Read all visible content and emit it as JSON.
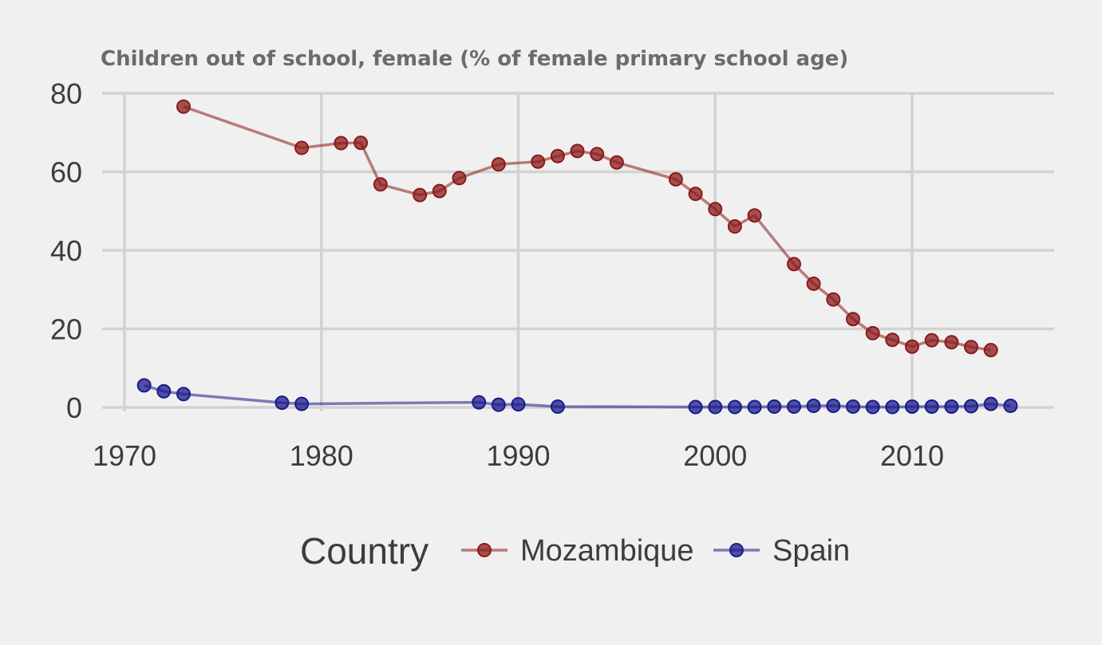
{
  "chart_data": {
    "type": "line",
    "title": "Children out of school, female (% of female primary school age)",
    "xlabel": "",
    "ylabel": "",
    "xlim": [
      1969,
      2017
    ],
    "ylim": [
      -1,
      80
    ],
    "x_ticks": [
      1970,
      1980,
      1990,
      2000,
      2010
    ],
    "y_ticks": [
      0,
      20,
      40,
      60,
      80
    ],
    "grid": true,
    "legend": {
      "title": "Country",
      "placement": "bottom"
    },
    "series": [
      {
        "name": "Mozambique",
        "color": "#8b1a1a",
        "points": [
          [
            1973,
            76.6
          ],
          [
            1979,
            66.1
          ],
          [
            1981,
            67.3
          ],
          [
            1982,
            67.4
          ],
          [
            1983,
            56.8
          ],
          [
            1985,
            54.1
          ],
          [
            1986,
            55.1
          ],
          [
            1987,
            58.4
          ],
          [
            1989,
            61.9
          ],
          [
            1991,
            62.6
          ],
          [
            1992,
            64.0
          ],
          [
            1993,
            65.3
          ],
          [
            1994,
            64.5
          ],
          [
            1995,
            62.4
          ],
          [
            1998,
            58.1
          ],
          [
            1999,
            54.4
          ],
          [
            2000,
            50.5
          ],
          [
            2001,
            46.1
          ],
          [
            2002,
            48.9
          ],
          [
            2004,
            36.5
          ],
          [
            2005,
            31.5
          ],
          [
            2006,
            27.5
          ],
          [
            2007,
            22.5
          ],
          [
            2008,
            18.9
          ],
          [
            2009,
            17.2
          ],
          [
            2010,
            15.5
          ],
          [
            2011,
            17.1
          ],
          [
            2012,
            16.6
          ],
          [
            2013,
            15.4
          ],
          [
            2014,
            14.6
          ]
        ]
      },
      {
        "name": "Spain",
        "color": "#1a1a8b",
        "points": [
          [
            1971,
            5.6
          ],
          [
            1972,
            4.1
          ],
          [
            1973,
            3.4
          ],
          [
            1978,
            1.2
          ],
          [
            1979,
            0.9
          ],
          [
            1988,
            1.3
          ],
          [
            1989,
            0.7
          ],
          [
            1990,
            0.8
          ],
          [
            1992,
            0.2
          ],
          [
            1999,
            0.1
          ],
          [
            2000,
            0.1
          ],
          [
            2001,
            0.1
          ],
          [
            2002,
            0.1
          ],
          [
            2003,
            0.2
          ],
          [
            2004,
            0.2
          ],
          [
            2005,
            0.4
          ],
          [
            2006,
            0.4
          ],
          [
            2007,
            0.2
          ],
          [
            2008,
            0.1
          ],
          [
            2009,
            0.1
          ],
          [
            2010,
            0.2
          ],
          [
            2011,
            0.2
          ],
          [
            2012,
            0.2
          ],
          [
            2013,
            0.3
          ],
          [
            2014,
            0.9
          ],
          [
            2015,
            0.4
          ]
        ]
      }
    ]
  }
}
